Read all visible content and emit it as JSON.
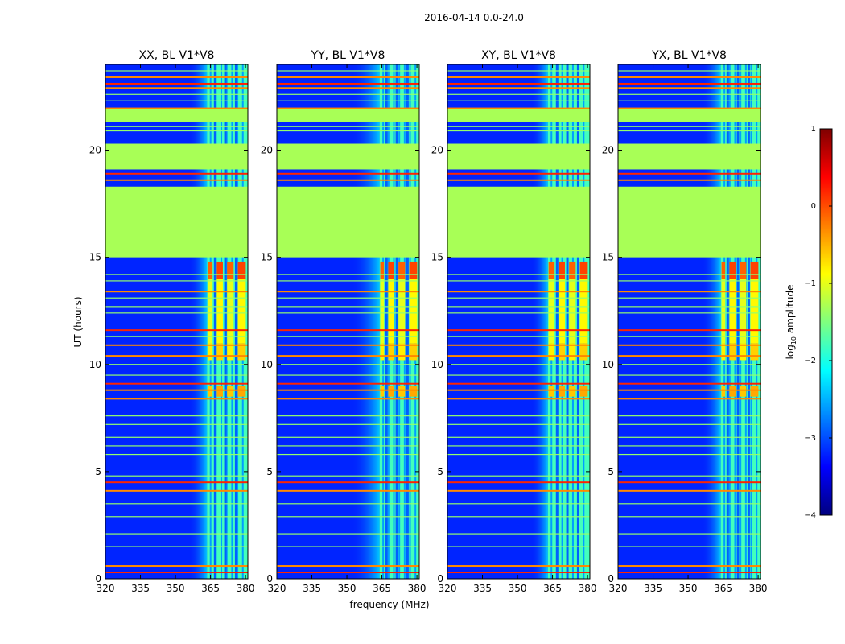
{
  "chart_data": {
    "type": "heatmap",
    "title": "2016-04-14 0.0-24.0",
    "xlabel": "frequency (MHz)",
    "ylabel": "UT (hours)",
    "xlim": [
      320,
      381
    ],
    "ylim": [
      0,
      24
    ],
    "xticks": [
      320,
      335,
      350,
      365,
      380
    ],
    "yticks": [
      0,
      5,
      10,
      15,
      20
    ],
    "panels": [
      {
        "title": "XX, BL V1*V8",
        "polarization": "XX",
        "signal_onset_mhz": 363.5,
        "gradient_onset_mhz": 356
      },
      {
        "title": "YY, BL V1*V8",
        "polarization": "YY",
        "signal_onset_mhz": 364,
        "gradient_onset_mhz": 352
      },
      {
        "title": "XY, BL V1*V8",
        "polarization": "XY",
        "signal_onset_mhz": 363,
        "gradient_onset_mhz": 356
      },
      {
        "title": "YX, BL V1*V8",
        "polarization": "YX",
        "signal_onset_mhz": 364,
        "gradient_onset_mhz": 356
      }
    ],
    "colorbar": {
      "label": "log10 amplitude",
      "label_main": "log",
      "label_sub": "10",
      "label_tail": " amplitude",
      "min": -4,
      "max": 1,
      "ticks": [
        "1",
        "0",
        "−1",
        "−2",
        "−3",
        "−4"
      ],
      "colormap": [
        "#00007f",
        "#0000ff",
        "#007fff",
        "#00ffff",
        "#7fff7f",
        "#ffff00",
        "#ff7f00",
        "#ff0000",
        "#7f0000"
      ]
    },
    "background_log_amplitude": -3.2,
    "bright_band_log_amplitude": -0.4,
    "flagged_log_amplitude": -1.3,
    "flagged_ut_ranges": [
      [
        15.0,
        18.3
      ],
      [
        19.1,
        20.3
      ],
      [
        21.3,
        21.9
      ]
    ],
    "rfi_ut_lines": [
      0.3,
      0.6,
      4.1,
      4.5,
      8.4,
      8.8,
      9.1,
      10.4,
      10.9,
      11.6,
      13.4,
      18.6,
      18.9,
      21.95,
      22.9,
      23.1,
      23.4
    ],
    "thin_ut_lines": [
      1.5,
      2.1,
      2.9,
      3.5,
      4.8,
      5.8,
      6.2,
      6.6,
      7.2,
      7.6,
      9.5,
      10.0,
      11.3,
      12.4,
      12.7,
      13.1,
      13.9,
      14.2,
      20.9,
      21.1,
      22.3,
      22.6,
      23.7
    ],
    "channel_gap_freqs_mhz": [
      366.8,
      371.2,
      375.8
    ]
  }
}
